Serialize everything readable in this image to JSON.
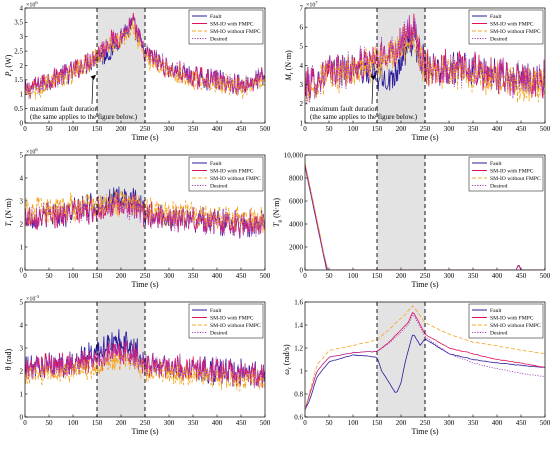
{
  "colors": {
    "fault": "#2b1d9c",
    "sm_io_fmpc": "#e0105a",
    "sm_io_without": "#f5a623",
    "desired": "#a040c0",
    "shade": "#d9d9d9"
  },
  "legend": [
    "Fault",
    "SM-IO with FMPC",
    "SM-IO without FMPC",
    "Desired"
  ],
  "chart_data": [
    {
      "type": "line",
      "ylabel": "P_r (W)",
      "xlabel": "Time (s)",
      "exponent": "×10^6",
      "xlim": [
        0,
        500
      ],
      "ylim": [
        0,
        4
      ],
      "xticks": [
        0,
        50,
        100,
        150,
        200,
        250,
        300,
        350,
        400,
        450,
        500
      ],
      "yticks": [
        0,
        0.5,
        1,
        1.5,
        2,
        2.5,
        3,
        3.5,
        4
      ],
      "ytick_labels": [
        "0",
        "0.5",
        "1",
        "1.5",
        "2",
        "2.5",
        "3",
        "3.5",
        "4"
      ],
      "fault_window": [
        150,
        250
      ],
      "annotation": [
        "maximum fault duration",
        "(the same applies to the figure below.)"
      ],
      "series": [
        {
          "name": "Fault",
          "x": [
            0,
            50,
            100,
            150,
            175,
            200,
            225,
            250,
            300,
            350,
            400,
            450,
            500
          ],
          "values": [
            1.1,
            1.5,
            1.8,
            2.3,
            2.4,
            3.0,
            3.4,
            2.4,
            1.9,
            1.6,
            1.5,
            1.3,
            1.6
          ]
        },
        {
          "name": "SM-IO with FMPC",
          "x": [
            0,
            50,
            100,
            150,
            175,
            200,
            225,
            250,
            300,
            350,
            400,
            450,
            500
          ],
          "values": [
            1.1,
            1.5,
            1.8,
            2.4,
            2.8,
            3.0,
            3.5,
            2.4,
            1.9,
            1.6,
            1.5,
            1.3,
            1.6
          ]
        },
        {
          "name": "SM-IO without FMPC",
          "x": [
            0,
            50,
            100,
            150,
            175,
            200,
            225,
            250,
            300,
            350,
            400,
            450,
            500
          ],
          "values": [
            1.0,
            1.4,
            1.7,
            2.3,
            2.7,
            2.9,
            3.3,
            2.3,
            1.8,
            1.5,
            1.4,
            1.2,
            1.5
          ]
        },
        {
          "name": "Desired",
          "x": [
            0,
            50,
            100,
            150,
            175,
            200,
            225,
            250,
            300,
            350,
            400,
            450,
            500
          ],
          "values": [
            1.1,
            1.5,
            1.8,
            2.4,
            2.8,
            3.0,
            3.5,
            2.4,
            1.9,
            1.6,
            1.5,
            1.3,
            1.6
          ]
        }
      ]
    },
    {
      "type": "line",
      "ylabel": "M_r (N·m)",
      "xlabel": "Time (s)",
      "exponent": "×10^7",
      "xlim": [
        0,
        500
      ],
      "ylim": [
        1,
        7
      ],
      "xticks": [
        0,
        50,
        100,
        150,
        200,
        250,
        300,
        350,
        400,
        450,
        500
      ],
      "yticks": [
        1,
        2,
        3,
        4,
        5,
        6,
        7
      ],
      "ytick_labels": [
        "1",
        "2",
        "3",
        "4",
        "5",
        "6",
        "7"
      ],
      "fault_window": [
        150,
        250
      ],
      "annotation": [
        "maximum fault duration",
        "(the same applies to the figure below.)"
      ],
      "series": [
        {
          "name": "Fault",
          "x": [
            0,
            50,
            100,
            150,
            175,
            200,
            225,
            250,
            300,
            350,
            400,
            450,
            500
          ],
          "values": [
            2.9,
            3.6,
            3.9,
            3.4,
            3.2,
            4.2,
            5.6,
            4.0,
            3.9,
            3.7,
            3.5,
            3.2,
            3.3
          ]
        },
        {
          "name": "SM-IO with FMPC",
          "x": [
            0,
            50,
            100,
            150,
            175,
            200,
            225,
            250,
            300,
            350,
            400,
            450,
            500
          ],
          "values": [
            2.9,
            3.6,
            3.9,
            4.3,
            4.7,
            5.2,
            5.8,
            4.0,
            3.9,
            3.7,
            3.5,
            3.2,
            3.3
          ]
        },
        {
          "name": "SM-IO without FMPC",
          "x": [
            0,
            50,
            100,
            150,
            175,
            200,
            225,
            250,
            300,
            350,
            400,
            450,
            500
          ],
          "values": [
            2.7,
            3.4,
            3.7,
            4.1,
            4.5,
            5.0,
            5.5,
            3.8,
            3.7,
            3.5,
            3.3,
            3.0,
            3.1
          ]
        },
        {
          "name": "Desired",
          "x": [
            0,
            50,
            100,
            150,
            175,
            200,
            225,
            250,
            300,
            350,
            400,
            450,
            500
          ],
          "values": [
            2.9,
            3.6,
            3.9,
            4.3,
            4.7,
            5.2,
            5.8,
            4.0,
            3.9,
            3.7,
            3.5,
            3.2,
            3.3
          ]
        }
      ]
    },
    {
      "type": "line",
      "ylabel": "T_r (N·m)",
      "xlabel": "Time (s)",
      "exponent": "×10^6",
      "xlim": [
        0,
        500
      ],
      "ylim": [
        0,
        5
      ],
      "xticks": [
        0,
        50,
        100,
        150,
        200,
        250,
        300,
        350,
        400,
        450,
        500
      ],
      "yticks": [
        0,
        1,
        2,
        3,
        4,
        5
      ],
      "ytick_labels": [
        "0",
        "1",
        "2",
        "3",
        "4",
        "5"
      ],
      "fault_window": [
        150,
        250
      ],
      "series": [
        {
          "name": "Fault",
          "x": [
            0,
            50,
            100,
            150,
            175,
            200,
            225,
            250,
            300,
            350,
            400,
            450,
            500
          ],
          "values": [
            2.3,
            2.4,
            2.5,
            2.8,
            3.0,
            3.1,
            3.0,
            2.4,
            2.3,
            2.2,
            2.1,
            2.0,
            2.0
          ]
        },
        {
          "name": "SM-IO with FMPC",
          "x": [
            0,
            50,
            100,
            150,
            175,
            200,
            225,
            250,
            300,
            350,
            400,
            450,
            500
          ],
          "values": [
            2.3,
            2.4,
            2.5,
            2.6,
            2.7,
            2.8,
            2.7,
            2.4,
            2.3,
            2.2,
            2.1,
            2.0,
            2.0
          ]
        },
        {
          "name": "SM-IO without FMPC",
          "x": [
            0,
            50,
            100,
            150,
            175,
            200,
            225,
            250,
            300,
            350,
            400,
            450,
            500
          ],
          "values": [
            2.5,
            2.6,
            2.7,
            2.8,
            2.9,
            3.0,
            2.9,
            2.6,
            2.5,
            2.4,
            2.3,
            2.2,
            2.2
          ]
        },
        {
          "name": "Desired",
          "x": [
            0,
            50,
            100,
            150,
            175,
            200,
            225,
            250,
            300,
            350,
            400,
            450,
            500
          ],
          "values": [
            2.3,
            2.4,
            2.5,
            2.6,
            2.7,
            2.8,
            2.7,
            2.4,
            2.3,
            2.2,
            2.1,
            2.0,
            2.0
          ]
        }
      ]
    },
    {
      "type": "line",
      "ylabel": "T_g (N·m)",
      "xlabel": "Time (s)",
      "exponent": "",
      "xlim": [
        0,
        500
      ],
      "ylim": [
        0,
        10000
      ],
      "xticks": [
        0,
        50,
        100,
        150,
        200,
        250,
        300,
        350,
        400,
        450,
        500
      ],
      "yticks": [
        0,
        2000,
        4000,
        6000,
        8000,
        10000
      ],
      "ytick_labels": [
        "0",
        "2000",
        "4000",
        "6000",
        "8000",
        "10,000"
      ],
      "fault_window": [
        150,
        250
      ],
      "series": [
        {
          "name": "Fault",
          "x": [
            0,
            10,
            20,
            30,
            40,
            45,
            440,
            445,
            450,
            500
          ],
          "values": [
            9000,
            7000,
            5000,
            3000,
            1000,
            0,
            0,
            500,
            0,
            0
          ]
        },
        {
          "name": "SM-IO with FMPC",
          "x": [
            0,
            10,
            20,
            30,
            40,
            47,
            440,
            445,
            450,
            500
          ],
          "values": [
            9200,
            7200,
            5200,
            3200,
            1200,
            0,
            0,
            500,
            0,
            0
          ]
        },
        {
          "name": "SM-IO without FMPC",
          "x": [
            0,
            10,
            20,
            30,
            40,
            48,
            500
          ],
          "values": [
            9300,
            7400,
            5400,
            3400,
            1300,
            0,
            0
          ]
        },
        {
          "name": "Desired",
          "x": [
            0,
            10,
            20,
            30,
            40,
            47,
            440,
            445,
            450,
            500
          ],
          "values": [
            9100,
            7100,
            5100,
            3100,
            1100,
            0,
            0,
            400,
            0,
            0
          ]
        }
      ]
    },
    {
      "type": "line",
      "ylabel": "θ (rad)",
      "xlabel": "Time (s)",
      "exponent": "×10^-3",
      "xlim": [
        0,
        500
      ],
      "ylim": [
        0,
        5
      ],
      "xticks": [
        0,
        50,
        100,
        150,
        200,
        250,
        300,
        350,
        400,
        450,
        500
      ],
      "yticks": [
        0,
        1,
        2,
        3,
        4,
        5
      ],
      "ytick_labels": [
        "0",
        "1",
        "2",
        "3",
        "4",
        "5"
      ],
      "fault_window": [
        150,
        250
      ],
      "series": [
        {
          "name": "Fault",
          "x": [
            0,
            50,
            100,
            150,
            175,
            200,
            225,
            250,
            300,
            350,
            400,
            450,
            500
          ],
          "values": [
            2.1,
            2.2,
            2.3,
            2.8,
            3.2,
            3.3,
            3.1,
            2.3,
            2.2,
            2.1,
            2.0,
            1.9,
            1.8
          ]
        },
        {
          "name": "SM-IO with FMPC",
          "x": [
            0,
            50,
            100,
            150,
            175,
            200,
            225,
            250,
            300,
            350,
            400,
            450,
            500
          ],
          "values": [
            2.1,
            2.2,
            2.3,
            2.5,
            2.7,
            2.8,
            2.7,
            2.3,
            2.2,
            2.1,
            2.0,
            1.9,
            1.8
          ]
        },
        {
          "name": "SM-IO without FMPC",
          "x": [
            0,
            50,
            100,
            150,
            175,
            200,
            225,
            250,
            300,
            350,
            400,
            450,
            500
          ],
          "values": [
            1.8,
            1.9,
            2.0,
            2.2,
            2.4,
            2.5,
            2.4,
            2.0,
            1.9,
            1.8,
            1.7,
            1.6,
            1.6
          ]
        },
        {
          "name": "Desired",
          "x": [
            0,
            50,
            100,
            150,
            175,
            200,
            225,
            250,
            300,
            350,
            400,
            450,
            500
          ],
          "values": [
            2.1,
            2.2,
            2.3,
            2.5,
            2.7,
            2.8,
            2.7,
            2.3,
            2.2,
            2.1,
            2.0,
            1.9,
            1.8
          ]
        }
      ]
    },
    {
      "type": "line",
      "ylabel": "ω_r (rad/s)",
      "xlabel": "Time (s)",
      "exponent": "",
      "xlim": [
        0,
        500
      ],
      "ylim": [
        0.6,
        1.6
      ],
      "xticks": [
        0,
        50,
        100,
        150,
        200,
        250,
        300,
        350,
        400,
        450,
        500
      ],
      "yticks": [
        0.6,
        0.8,
        1.0,
        1.2,
        1.4,
        1.6
      ],
      "ytick_labels": [
        "0.6",
        "0.8",
        "1",
        "1.2",
        "1.4",
        "1.6"
      ],
      "fault_window": [
        150,
        250
      ],
      "series": [
        {
          "name": "Fault",
          "x": [
            0,
            10,
            25,
            50,
            100,
            150,
            160,
            175,
            190,
            200,
            210,
            225,
            240,
            250,
            300,
            350,
            400,
            450,
            500
          ],
          "values": [
            0.66,
            0.75,
            0.95,
            1.08,
            1.14,
            1.12,
            1.0,
            0.9,
            0.8,
            0.9,
            1.1,
            1.33,
            1.22,
            1.28,
            1.15,
            1.1,
            1.07,
            1.05,
            1.03
          ]
        },
        {
          "name": "SM-IO with FMPC",
          "x": [
            0,
            10,
            25,
            50,
            100,
            150,
            175,
            200,
            215,
            225,
            240,
            250,
            300,
            350,
            400,
            450,
            500
          ],
          "values": [
            0.66,
            0.8,
            1.0,
            1.12,
            1.16,
            1.17,
            1.25,
            1.36,
            1.42,
            1.52,
            1.4,
            1.32,
            1.2,
            1.15,
            1.1,
            1.07,
            1.03
          ]
        },
        {
          "name": "SM-IO without FMPC",
          "x": [
            0,
            10,
            25,
            50,
            100,
            150,
            175,
            200,
            215,
            225,
            240,
            250,
            300,
            350,
            400,
            450,
            500
          ],
          "values": [
            0.66,
            0.82,
            1.05,
            1.18,
            1.22,
            1.27,
            1.36,
            1.46,
            1.52,
            1.57,
            1.48,
            1.42,
            1.32,
            1.25,
            1.22,
            1.18,
            1.15
          ]
        },
        {
          "name": "Desired",
          "x": [
            0,
            10,
            25,
            50,
            100,
            150,
            175,
            200,
            215,
            225,
            240,
            250,
            300,
            350,
            400,
            450,
            500
          ],
          "values": [
            0.66,
            0.8,
            1.0,
            1.12,
            1.16,
            1.17,
            1.24,
            1.34,
            1.4,
            1.5,
            1.38,
            1.3,
            1.15,
            1.07,
            1.02,
            0.98,
            0.95
          ]
        }
      ]
    }
  ]
}
